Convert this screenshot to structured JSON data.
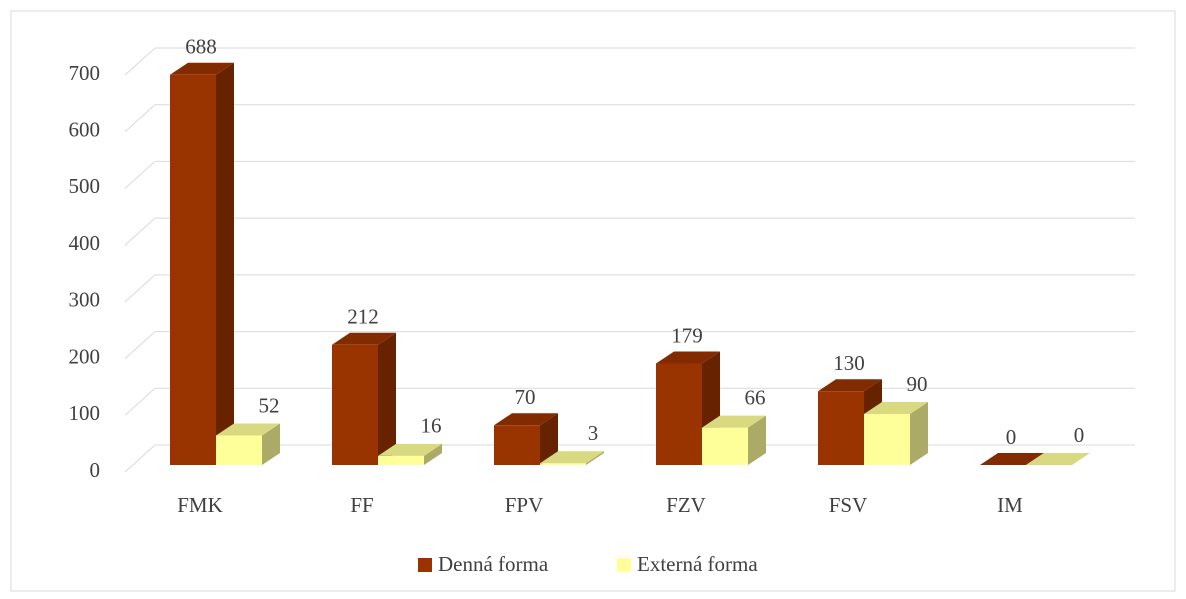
{
  "chart_data": {
    "type": "bar3d",
    "categories": [
      "FMK",
      "FF",
      "FPV",
      "FZV",
      "FSV",
      "IM"
    ],
    "series": [
      {
        "name": "Denná forma",
        "color": "#993300",
        "values": [
          688,
          212,
          70,
          179,
          130,
          0
        ]
      },
      {
        "name": "Externá forma",
        "color": "#ffff99",
        "values": [
          52,
          16,
          3,
          66,
          90,
          0
        ]
      }
    ],
    "ylim": [
      0,
      700
    ],
    "yticks": [
      0,
      100,
      200,
      300,
      400,
      500,
      600,
      700
    ],
    "grid": true,
    "legend": "bottom"
  }
}
